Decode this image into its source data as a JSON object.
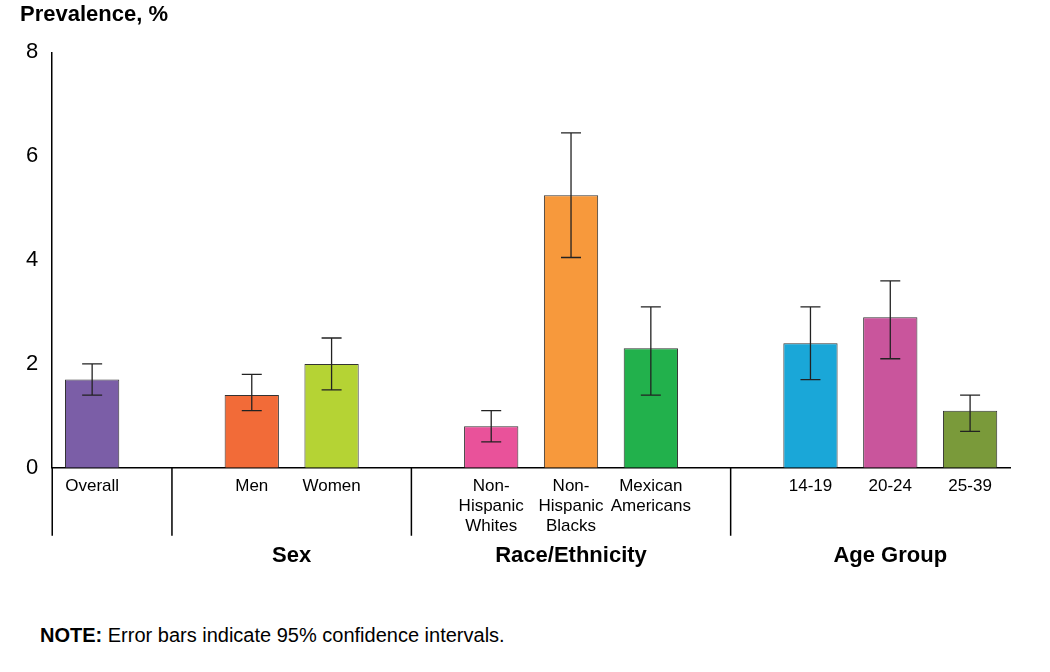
{
  "chart_data": {
    "type": "bar",
    "y_label": "Prevalence, %",
    "categories": [
      "Overall",
      "Men",
      "Women",
      [
        "Non-",
        "Hispanic",
        "Whites"
      ],
      [
        "Non-",
        "Hispanic",
        "Blacks"
      ],
      [
        "Mexican",
        "Americans"
      ],
      "14-19",
      "20-24",
      "25-39"
    ],
    "groups": [
      null,
      "Sex",
      "Sex",
      "Race/Ethnicity",
      "Race/Ethnicity",
      "Race/Ethnicity",
      "Age Group",
      "Age Group",
      "Age Group"
    ],
    "values": [
      1.7,
      1.4,
      2.0,
      0.8,
      5.25,
      2.3,
      2.4,
      2.9,
      1.1
    ],
    "ci_lower": [
      1.4,
      1.1,
      1.5,
      0.5,
      4.05,
      1.4,
      1.7,
      2.1,
      0.7
    ],
    "ci_upper": [
      2.0,
      1.8,
      2.5,
      1.1,
      6.45,
      3.1,
      3.1,
      3.6,
      1.4
    ],
    "colors": [
      "#7b5ea7",
      "#f26b38",
      "#b5d334",
      "#e9529a",
      "#f7993c",
      "#22b14c",
      "#1aa7d8",
      "#c9559c",
      "#7a9a3a"
    ],
    "ylim": [
      0,
      8
    ],
    "yticks": [
      0,
      2,
      4,
      6,
      8
    ],
    "grid": false,
    "note": "NOTE: Error bars indicate 95% confidence intervals."
  }
}
